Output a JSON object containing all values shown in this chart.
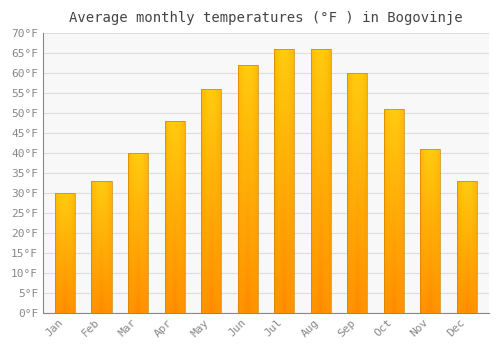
{
  "title": "Average monthly temperatures (°F ) in Bogovinje",
  "months": [
    "Jan",
    "Feb",
    "Mar",
    "Apr",
    "May",
    "Jun",
    "Jul",
    "Aug",
    "Sep",
    "Oct",
    "Nov",
    "Dec"
  ],
  "values": [
    30,
    33,
    40,
    48,
    56,
    62,
    66,
    66,
    60,
    51,
    41,
    33
  ],
  "bar_color_center": "#FFB800",
  "bar_color_edge": "#FF8800",
  "bar_color_top": "#FFD040",
  "ylim": [
    0,
    70
  ],
  "ytick_step": 5,
  "background_color": "#FFFFFF",
  "plot_bg_color": "#F8F8F8",
  "grid_color": "#DDDDDD",
  "title_fontsize": 10,
  "tick_fontsize": 8,
  "tick_color": "#888888",
  "spine_color": "#AAAAAA",
  "font_family": "monospace",
  "bar_width": 0.55
}
